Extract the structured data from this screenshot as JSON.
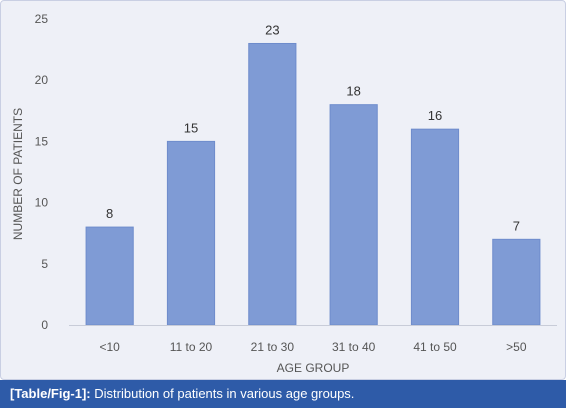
{
  "chart_data": {
    "type": "bar",
    "categories": [
      "<10",
      "11 to 20",
      "21 to 30",
      "31 to 40",
      "41 to 50",
      ">50"
    ],
    "values": [
      8,
      15,
      23,
      18,
      16,
      7
    ],
    "xlabel": "AGE GROUP",
    "ylabel": "NUMBER OF PATIENTS",
    "ylim": [
      0,
      25
    ],
    "yticks": [
      "0",
      "5",
      "10",
      "15",
      "20",
      "25"
    ],
    "bar_color": "#7f9bd5",
    "grid": false,
    "legend": "none"
  },
  "caption": {
    "tag": "[Table/Fig-1]:",
    "text": "Distribution of patients in various age groups."
  }
}
